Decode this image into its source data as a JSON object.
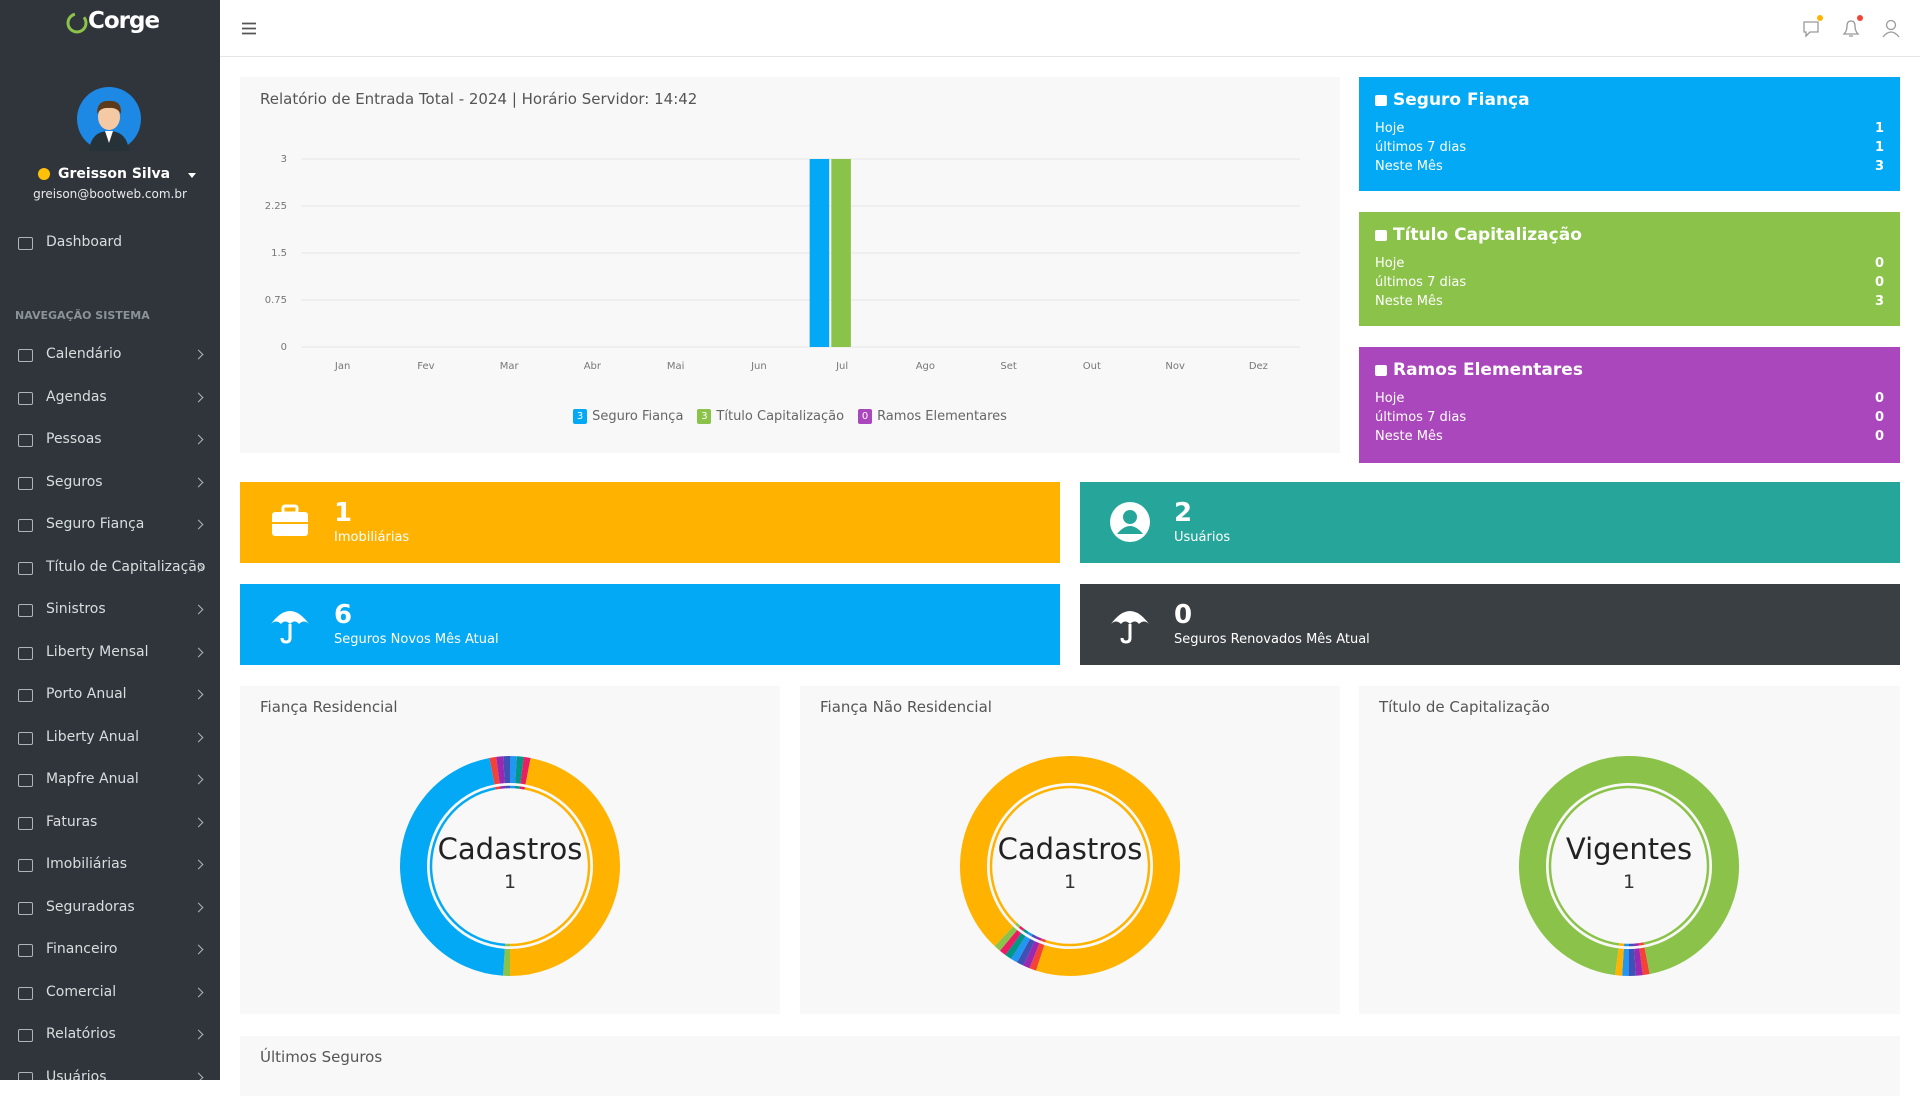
{
  "brand": "Corge",
  "user": {
    "name": "Greisson Silva",
    "email": "greison@bootweb.com.br"
  },
  "menu": {
    "dashboard": "Dashboard",
    "section": "NAVEGAÇÃO SISTEMA",
    "items": [
      "Calendário",
      "Agendas",
      "Pessoas",
      "Seguros",
      "Seguro Fiança",
      "Título de Capitalização",
      "Sinistros",
      "Liberty Mensal",
      "Porto Anual",
      "Liberty Anual",
      "Mapfre Anual",
      "Faturas",
      "Imobiliárias",
      "Seguradoras",
      "Financeiro",
      "Comercial",
      "Relatórios",
      "Usuários"
    ]
  },
  "chart_data": {
    "type": "bar",
    "title": "Relatório de Entrada Total - 2024 | Horário Servidor: 14:42",
    "categories": [
      "Jan",
      "Fev",
      "Mar",
      "Abr",
      "Mai",
      "Jun",
      "Jul",
      "Ago",
      "Set",
      "Out",
      "Nov",
      "Dez"
    ],
    "series": [
      {
        "name": "Seguro Fiança",
        "color": "#03a9f4",
        "total": 3,
        "values": [
          0,
          0,
          0,
          0,
          0,
          0,
          3,
          0,
          0,
          0,
          0,
          0
        ]
      },
      {
        "name": "Título Capitalização",
        "color": "#8bc34a",
        "total": 3,
        "values": [
          0,
          0,
          0,
          0,
          0,
          0,
          3,
          0,
          0,
          0,
          0,
          0
        ]
      },
      {
        "name": "Ramos Elementares",
        "color": "#ab47bc",
        "total": 0,
        "values": [
          0,
          0,
          0,
          0,
          0,
          0,
          0,
          0,
          0,
          0,
          0,
          0
        ]
      }
    ],
    "ylim": [
      0,
      3
    ],
    "yticks": [
      0,
      0.75,
      1.5,
      2.25,
      3
    ],
    "grid": true
  },
  "summary_cards": [
    {
      "title": "Seguro Fiança",
      "color": "#03a9f4",
      "rows": [
        {
          "label": "Hoje",
          "value": 1
        },
        {
          "label": "últimos 7 dias",
          "value": 1
        },
        {
          "label": "Neste Mês",
          "value": 3
        }
      ]
    },
    {
      "title": "Título Capitalização",
      "color": "#8bc34a",
      "rows": [
        {
          "label": "Hoje",
          "value": 0
        },
        {
          "label": "últimos 7 dias",
          "value": 0
        },
        {
          "label": "Neste Mês",
          "value": 3
        }
      ]
    },
    {
      "title": "Ramos Elementares",
      "color": "#ab47bc",
      "rows": [
        {
          "label": "Hoje",
          "value": 0
        },
        {
          "label": "últimos 7 dias",
          "value": 0
        },
        {
          "label": "Neste Mês",
          "value": 0
        }
      ]
    }
  ],
  "stats": [
    {
      "value": 1,
      "label": "Imobiliárias",
      "color": "#ffb300"
    },
    {
      "value": 2,
      "label": "Usuários",
      "color": "#26a69a"
    },
    {
      "value": 6,
      "label": "Seguros Novos Mês Atual",
      "color": "#03a9f4"
    },
    {
      "value": 0,
      "label": "Seguros Renovados Mês Atual",
      "color": "#3a3f44"
    }
  ],
  "donuts": [
    {
      "title": "Fiança Residencial",
      "center_label": "Cadastros",
      "center_value": 1,
      "segments": [
        {
          "color": "#f44336",
          "value": 1
        },
        {
          "color": "#9c27b0",
          "value": 1
        },
        {
          "color": "#3f51b5",
          "value": 1
        },
        {
          "color": "#2196f3",
          "value": 1
        },
        {
          "color": "#009688",
          "value": 1
        },
        {
          "color": "#e91e63",
          "value": 1
        },
        {
          "color": "#ffb300",
          "value": 47
        },
        {
          "color": "#8bc34a",
          "value": 1
        },
        {
          "color": "#03a9f4",
          "value": 46
        }
      ]
    },
    {
      "title": "Fiança Não Residencial",
      "center_label": "Cadastros",
      "center_value": 1,
      "segments": [
        {
          "color": "#ffb300",
          "value": 93
        },
        {
          "color": "#f44336",
          "value": 1
        },
        {
          "color": "#9c27b0",
          "value": 1
        },
        {
          "color": "#3f51b5",
          "value": 1
        },
        {
          "color": "#2196f3",
          "value": 1
        },
        {
          "color": "#009688",
          "value": 1
        },
        {
          "color": "#e91e63",
          "value": 1
        },
        {
          "color": "#8bc34a",
          "value": 1
        }
      ]
    },
    {
      "title": "Título de Capitalização",
      "center_label": "Vigentes",
      "center_value": 1,
      "segments": [
        {
          "color": "#8bc34a",
          "value": 95
        },
        {
          "color": "#f44336",
          "value": 1
        },
        {
          "color": "#9c27b0",
          "value": 1
        },
        {
          "color": "#3f51b5",
          "value": 1
        },
        {
          "color": "#2196f3",
          "value": 1
        },
        {
          "color": "#ffb300",
          "value": 1
        }
      ]
    }
  ],
  "latest": {
    "title": "Últimos Seguros"
  }
}
